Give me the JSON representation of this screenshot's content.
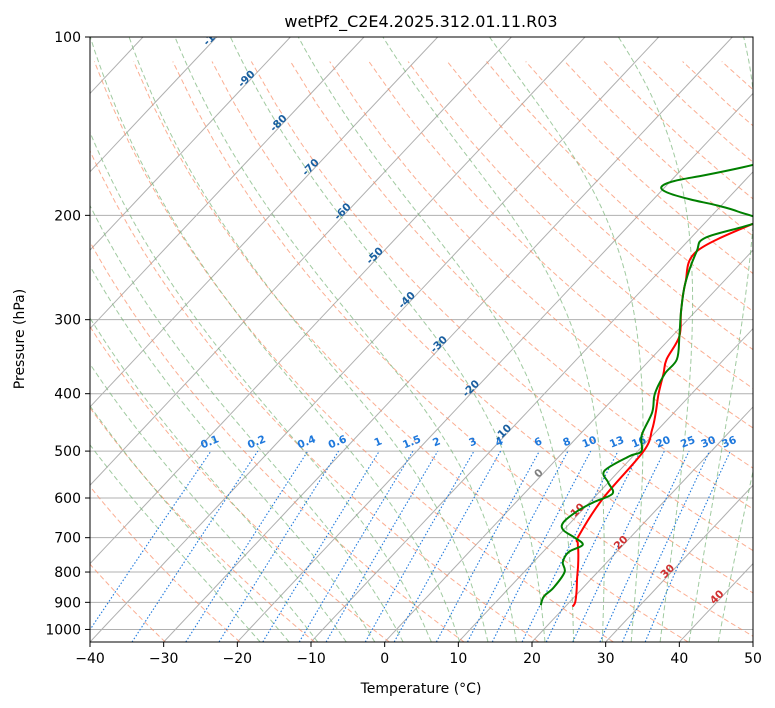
{
  "chart_data": {
    "type": "line",
    "title": "wetPf2_C2E4.2025.312.01.11.R03",
    "xlabel": "Temperature (°C)",
    "ylabel": "Pressure (hPa)",
    "xlim": [
      -40,
      50
    ],
    "ylim": [
      1050,
      100
    ],
    "x_ticks": [
      "−40",
      "−30",
      "−20",
      "−10",
      "0",
      "10",
      "20",
      "30",
      "40",
      "50"
    ],
    "y_ticks": [
      "100",
      "200",
      "300",
      "400",
      "500",
      "600",
      "700",
      "800",
      "900",
      "1000"
    ],
    "colors": {
      "temperature": "#ff0000",
      "dewpoint": "#008000",
      "isotherm": "#b0b0b0",
      "dry_adiabat": "#fa8c64",
      "moist_adiabat": "#78b478",
      "mixing_ratio": "#1e78dc",
      "ccl_label": "#1a5fa0",
      "warm_label": "#d03030",
      "zero_label": "#808080"
    },
    "series": [
      {
        "name": "Temperature",
        "points": [
          [
            21.0,
            915
          ],
          [
            20.8,
            900
          ],
          [
            19.5,
            860
          ],
          [
            18.0,
            820
          ],
          [
            16.5,
            780
          ],
          [
            14.8,
            740
          ],
          [
            13.6,
            715
          ],
          [
            12.8,
            695
          ],
          [
            11.3,
            600
          ],
          [
            10.8,
            500
          ],
          [
            9.2,
            460
          ],
          [
            7.5,
            430
          ],
          [
            5.5,
            400
          ],
          [
            3.6,
            370
          ],
          [
            2.2,
            350
          ],
          [
            1.0,
            320
          ],
          [
            -2.0,
            290
          ],
          [
            -5.0,
            260
          ],
          [
            -7.5,
            230
          ],
          [
            -3.0,
            205
          ],
          [
            -1.5,
            200
          ],
          [
            3.0,
            188
          ],
          [
            6.0,
            180
          ],
          [
            8.0,
            170
          ],
          [
            11.0,
            160
          ],
          [
            15.0,
            150
          ],
          [
            18.5,
            140
          ],
          [
            20.5,
            130
          ],
          [
            22.5,
            120
          ],
          [
            23.4,
            110
          ],
          [
            23.5,
            104
          ],
          [
            23.9,
            100
          ]
        ]
      },
      {
        "name": "Dewpoint",
        "points": [
          [
            16.5,
            910
          ],
          [
            15.8,
            880
          ],
          [
            16.0,
            850
          ],
          [
            15.5,
            800
          ],
          [
            14.0,
            770
          ],
          [
            13.5,
            740
          ],
          [
            14.5,
            720
          ],
          [
            12.5,
            700
          ],
          [
            10.0,
            680
          ],
          [
            9.0,
            660
          ],
          [
            9.5,
            630
          ],
          [
            10.5,
            610
          ],
          [
            12.0,
            590
          ],
          [
            10.0,
            565
          ],
          [
            8.0,
            540
          ],
          [
            9.5,
            510
          ],
          [
            10.5,
            500
          ],
          [
            8.5,
            470
          ],
          [
            7.0,
            430
          ],
          [
            5.0,
            400
          ],
          [
            3.8,
            370
          ],
          [
            3.6,
            350
          ],
          [
            1.0,
            320
          ],
          [
            -2.0,
            290
          ],
          [
            -5.0,
            260
          ],
          [
            -7.5,
            230
          ],
          [
            -8.0,
            218
          ],
          [
            -3.0,
            205
          ],
          [
            -7.0,
            197
          ],
          [
            -11.0,
            192
          ],
          [
            -15.0,
            188
          ],
          [
            -19.0,
            183
          ],
          [
            -20.5,
            179
          ],
          [
            -19.5,
            175
          ],
          [
            -16.0,
            171
          ],
          [
            -12.0,
            166
          ],
          [
            -9.5,
            162
          ],
          [
            -8.0,
            158
          ],
          [
            -8.0,
            155
          ],
          [
            -9.5,
            150
          ],
          [
            -12.0,
            145
          ],
          [
            -15.0,
            138
          ],
          [
            -16.0,
            134
          ],
          [
            -16.5,
            130
          ],
          [
            -15.5,
            127
          ],
          [
            -13.5,
            124
          ],
          [
            -11.0,
            120
          ],
          [
            -8.5,
            115
          ],
          [
            -6.0,
            109
          ],
          [
            -4.2,
            103
          ],
          [
            -3.4,
            100
          ]
        ]
      }
    ],
    "dry_adiabat_labels": [
      "-100",
      "-90",
      "-80",
      "-70",
      "-60",
      "-50",
      "-40",
      "-30",
      "-20",
      "-10"
    ],
    "mixing_ratio_labels": [
      "0.1",
      "0.2",
      "0.4",
      "0.6",
      "1",
      "1.5",
      "2",
      "3",
      "4",
      "6",
      "8",
      "10",
      "13",
      "16",
      "20",
      "25",
      "30",
      "36"
    ],
    "moist_adiabat_labels": [
      "0",
      "10",
      "20",
      "30",
      "40"
    ]
  }
}
